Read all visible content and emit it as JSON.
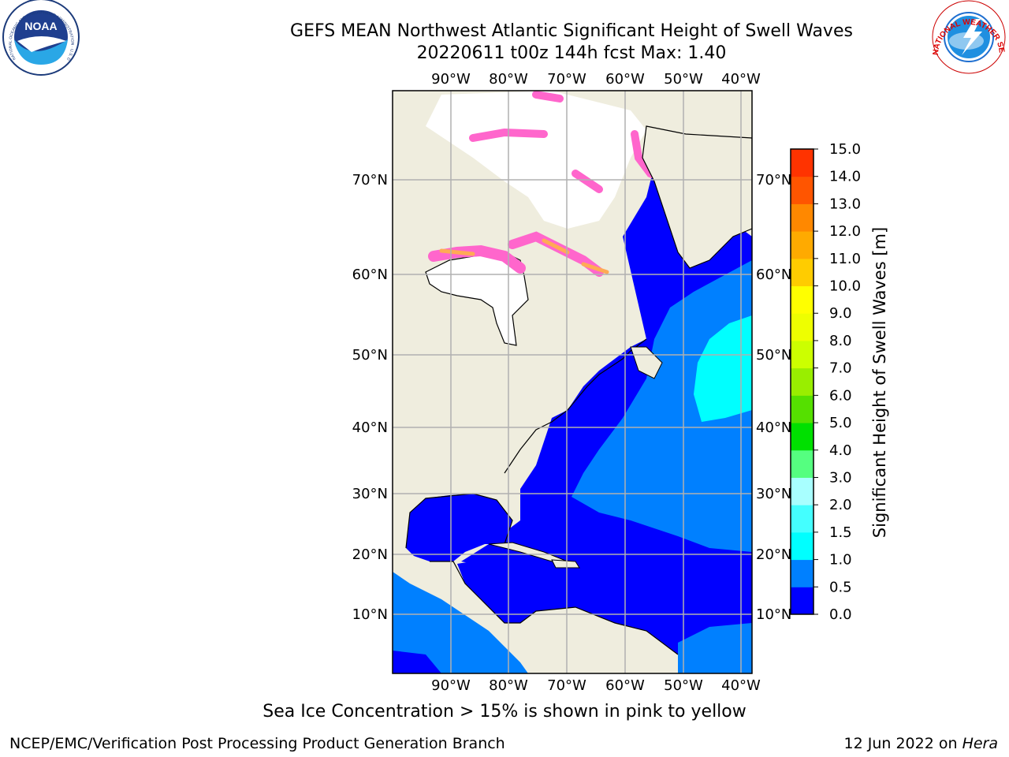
{
  "header": {
    "title_line1": "GEFS MEAN Northwest Atlantic Significant Height of Swell Waves",
    "title_line2": "20220611 t00z 144h fcst   Max: 1.40"
  },
  "logos": {
    "left": {
      "text": "NOAA",
      "ring_text": "NATIONAL OCEANIC AND ATMOSPHERIC ADMINISTRATION · U.S. DEPARTMENT OF COMMERCE"
    },
    "right": {
      "ring_text": "NATIONAL WEATHER SERVICE"
    }
  },
  "map": {
    "lon_labels": [
      "90°W",
      "80°W",
      "70°W",
      "60°W",
      "50°W",
      "40°W"
    ],
    "lat_labels": [
      "70°N",
      "60°N",
      "50°N",
      "40°N",
      "30°N",
      "20°N",
      "10°N"
    ],
    "colors": {
      "land": "#efedde",
      "ocean_low": "#0000ff",
      "ocean_mid": "#0080ff",
      "ocean_high": "#00ffff",
      "ice_pink": "#ff66cc",
      "ice_orange": "#ffaa55",
      "grid": "#b0b0b0"
    }
  },
  "colorbar": {
    "label": "Significant Height of Swell Waves [m]",
    "ticks": [
      "15.0",
      "14.0",
      "13.0",
      "12.0",
      "11.0",
      "10.0",
      "9.0",
      "8.0",
      "7.0",
      "6.0",
      "5.0",
      "4.0",
      "3.0",
      "2.0",
      "1.5",
      "1.0",
      "0.5",
      "0.0"
    ],
    "colors_bottom_to_top": [
      "#0000ff",
      "#0080ff",
      "#00ffff",
      "#44ffff",
      "#a8ffff",
      "#55ff80",
      "#00e000",
      "#55e000",
      "#99ee00",
      "#ccff00",
      "#eeff00",
      "#ffff00",
      "#ffcc00",
      "#ffaa00",
      "#ff8800",
      "#ff5500",
      "#ff3300",
      "#ff0000"
    ]
  },
  "caption": "Sea Ice Concentration > 15% is shown in pink to yellow",
  "footer": {
    "left": "NCEP/EMC/Verification Post Processing Product Generation Branch",
    "right_date": "12 Jun 2022 on ",
    "right_host": "Hera"
  }
}
